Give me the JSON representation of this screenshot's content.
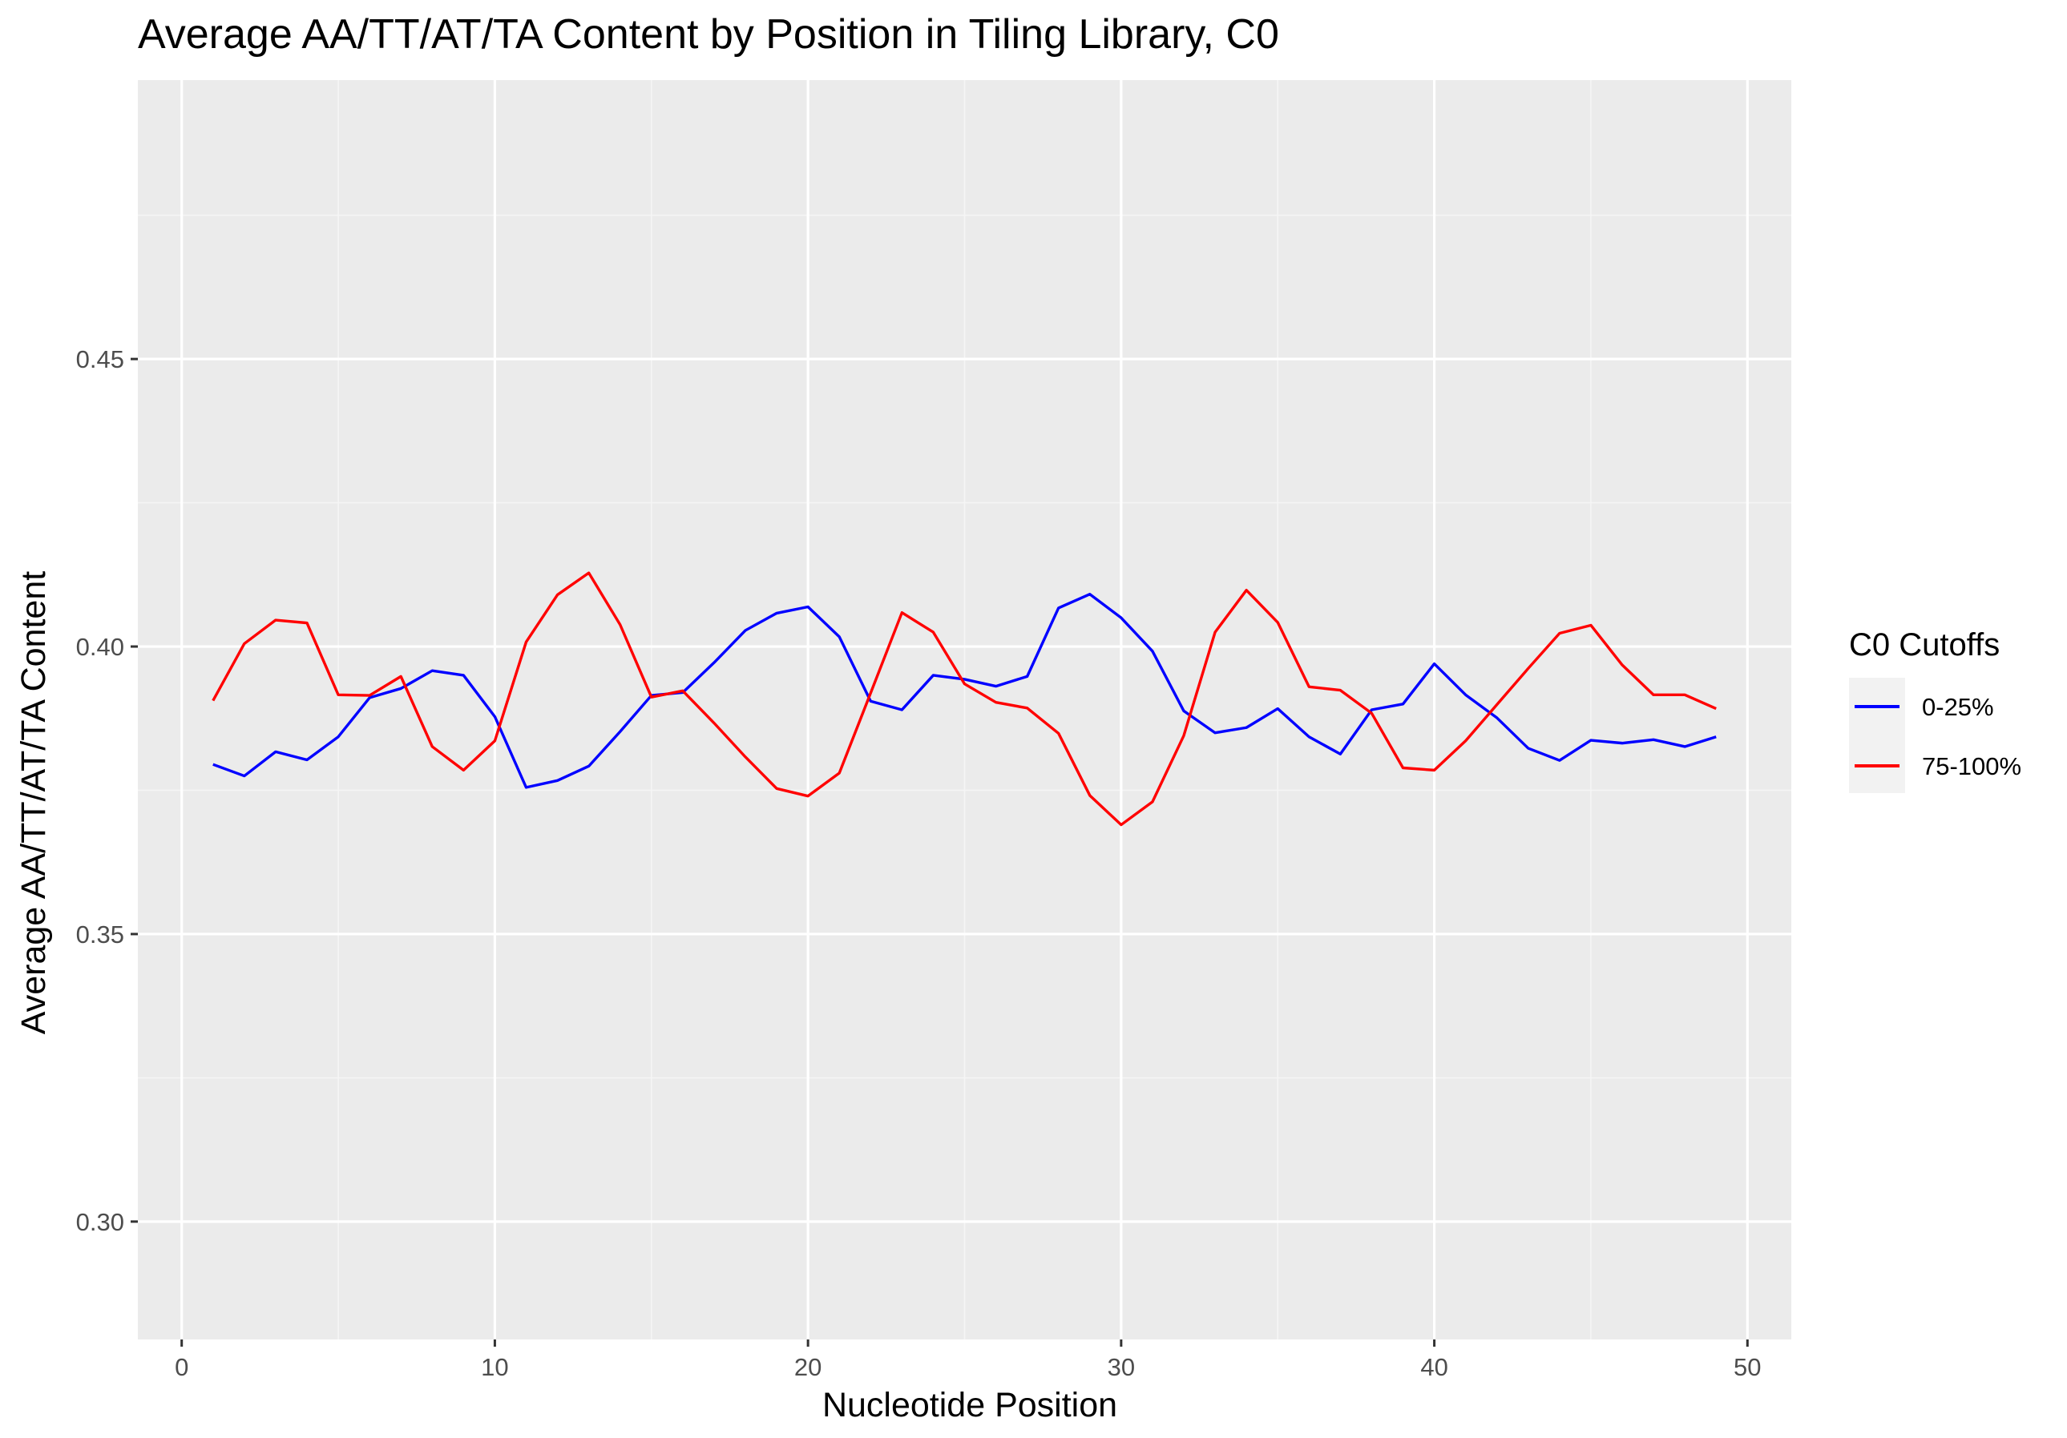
{
  "chart_data": {
    "type": "line",
    "title": "Average AA/TT/AT/TA Content by Position in Tiling Library, C0",
    "xlabel": "Nucleotide Position",
    "ylabel": "Average AA/TT/AT/TA Content",
    "xlim": [
      -1.4,
      51.4
    ],
    "ylim": [
      0.2795,
      0.4985
    ],
    "x_ticks": [
      0,
      10,
      20,
      30,
      40,
      50
    ],
    "x_tick_labels": [
      "0",
      "10",
      "20",
      "30",
      "40",
      "50"
    ],
    "y_ticks": [
      0.3,
      0.35,
      0.4,
      0.45
    ],
    "y_tick_labels": [
      "0.30",
      "0.35",
      "0.40",
      "0.45"
    ],
    "grid": true,
    "background": "#ebebeb",
    "legend": {
      "title": "C0 Cutoffs",
      "position": "right"
    },
    "x": [
      1,
      2,
      3,
      4,
      5,
      6,
      7,
      8,
      9,
      10,
      11,
      12,
      13,
      14,
      15,
      16,
      17,
      18,
      19,
      20,
      21,
      22,
      23,
      24,
      25,
      26,
      27,
      28,
      29,
      30,
      31,
      32,
      33,
      34,
      35,
      36,
      37,
      38,
      39,
      40,
      41,
      42,
      43,
      44,
      45,
      46,
      47,
      48,
      49
    ],
    "series": [
      {
        "name": "0-25%",
        "color": "#0000ff",
        "values": [
          0.3795,
          0.3775,
          0.3817,
          0.3803,
          0.3843,
          0.3911,
          0.3927,
          0.3958,
          0.395,
          0.3878,
          0.3755,
          0.3767,
          0.3792,
          0.3852,
          0.3915,
          0.392,
          0.3972,
          0.4028,
          0.4058,
          0.4069,
          0.4017,
          0.3905,
          0.389,
          0.395,
          0.3943,
          0.3931,
          0.3948,
          0.4067,
          0.4091,
          0.405,
          0.3992,
          0.3888,
          0.385,
          0.3859,
          0.3892,
          0.3843,
          0.3813,
          0.389,
          0.39,
          0.397,
          0.3916,
          0.3876,
          0.3823,
          0.3802,
          0.3837,
          0.3832,
          0.3838,
          0.3826,
          0.3843
        ]
      },
      {
        "name": "75-100%",
        "color": "#ff0000",
        "values": [
          0.3906,
          0.4005,
          0.4046,
          0.4041,
          0.3916,
          0.3915,
          0.3948,
          0.3826,
          0.3785,
          0.3836,
          0.4008,
          0.409,
          0.4128,
          0.4038,
          0.3912,
          0.3923,
          0.3867,
          0.3808,
          0.3753,
          0.374,
          0.378,
          0.3919,
          0.4059,
          0.4025,
          0.3935,
          0.3903,
          0.3893,
          0.3849,
          0.3741,
          0.369,
          0.373,
          0.3845,
          0.4025,
          0.4098,
          0.4042,
          0.393,
          0.3924,
          0.3884,
          0.3789,
          0.3785,
          0.3836,
          0.3899,
          0.3962,
          0.4023,
          0.4037,
          0.3968,
          0.3916,
          0.3916,
          0.3892
        ]
      }
    ]
  }
}
